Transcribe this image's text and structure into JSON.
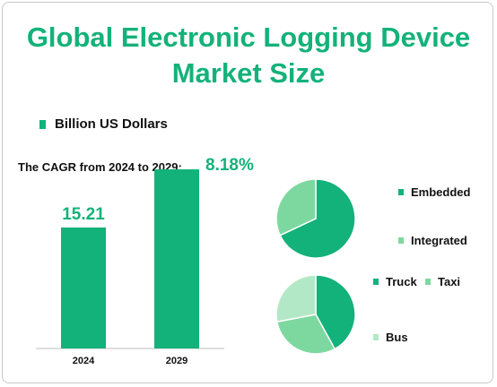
{
  "title_line1": "Global Electronic Logging Device",
  "title_line2": "Market Size",
  "legend_label": "Billion US Dollars",
  "cagr_label": "The CAGR from 2024 to 2029:",
  "cagr_value": "8.18%",
  "colors": {
    "accent": "#13b27a",
    "light": "#7dd89f",
    "pale": "#b3e8c7"
  },
  "chart_data": [
    {
      "type": "bar",
      "categories": [
        "2024",
        "2029"
      ],
      "values": [
        15.21,
        22.52
      ],
      "data_labels": [
        "15.21",
        ""
      ],
      "series": [
        {
          "name": "Billion US Dollars",
          "values": [
            15.21,
            22.52
          ]
        }
      ],
      "ylim": [
        0,
        25
      ]
    },
    {
      "type": "pie",
      "labels": [
        "Embedded",
        "Integrated"
      ],
      "values": [
        68,
        32
      ],
      "colors": [
        "#13b27a",
        "#7dd89f"
      ]
    },
    {
      "type": "pie",
      "labels": [
        "Truck",
        "Taxi",
        "Bus"
      ],
      "values": [
        42,
        30,
        28
      ],
      "colors": [
        "#13b27a",
        "#7dd89f",
        "#b3e8c7"
      ]
    }
  ]
}
